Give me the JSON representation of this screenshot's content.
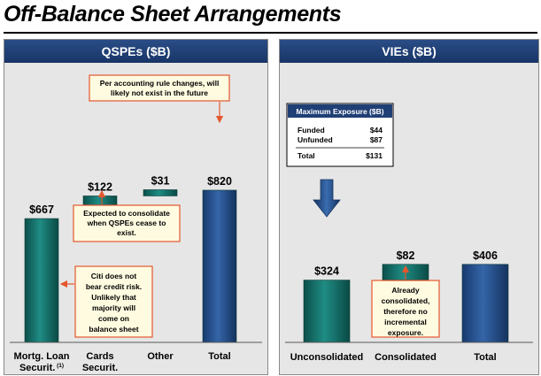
{
  "title": "Off-Balance Sheet Arrangements",
  "colors": {
    "teal": "#0f6f68",
    "blue": "#23508f",
    "header": "#1f3f75",
    "callout_border": "#e4572e",
    "callout_fill": "#fffbe0"
  },
  "chart_data": [
    {
      "type": "bar",
      "title": "QSPEs ($B)",
      "categories": [
        "Mortg. Loan Securit.",
        "Cards Securit.",
        "Other",
        "Total"
      ],
      "category_footnote": "(1)",
      "values": [
        667,
        122,
        31,
        820
      ],
      "bar_labels": [
        "$667",
        "$122",
        "$31",
        "$820"
      ],
      "bar_style": "waterfall",
      "annotations": [
        "Per accounting rule changes, will likely not exist in the future",
        "Expected to consolidate when QSPEs cease to exist.",
        "Citi does not bear credit risk. Unlikely that majority will come on balance sheet"
      ]
    },
    {
      "type": "bar",
      "title": "VIEs ($B)",
      "categories": [
        "Unconsolidated",
        "Consolidated",
        "Total"
      ],
      "values": [
        324,
        82,
        406
      ],
      "bar_labels": [
        "$324",
        "$82",
        "$406"
      ],
      "bar_style": "waterfall",
      "annotations": [
        "Already consolidated, therefore no incremental exposure."
      ],
      "exposure_table": {
        "title": "Maximum Exposure ($B)",
        "rows": [
          {
            "label": "Funded",
            "value": "$44"
          },
          {
            "label": "Unfunded",
            "value": "$87"
          },
          {
            "label": "Total",
            "value": "$131"
          }
        ]
      }
    }
  ]
}
